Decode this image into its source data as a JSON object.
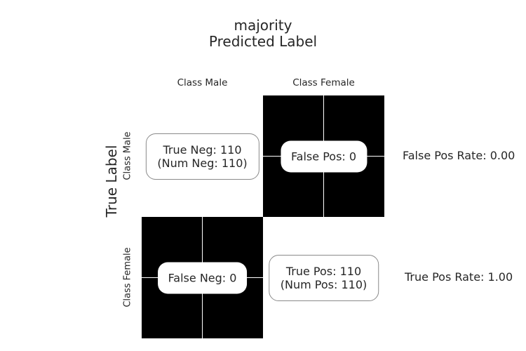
{
  "chart_data": {
    "type": "heatmap",
    "title": "majority",
    "xlabel": "Predicted Label",
    "ylabel": "True Label",
    "x_categories": [
      "Class Male",
      "Class Female"
    ],
    "y_categories": [
      "Class Male",
      "Class Female"
    ],
    "cells": [
      [
        {
          "label": "True Neg: 110",
          "sublabel": "(Num Neg: 110)",
          "value": 110
        },
        {
          "label": "False Pos: 0",
          "sublabel": "",
          "value": 0
        }
      ],
      [
        {
          "label": "False Neg: 0",
          "sublabel": "",
          "value": 0
        },
        {
          "label": "True Pos: 110",
          "sublabel": "(Num Pos: 110)",
          "value": 110
        }
      ]
    ],
    "row_rates": [
      "False Pos Rate: 0.00",
      "True Pos Rate: 1.00"
    ]
  }
}
